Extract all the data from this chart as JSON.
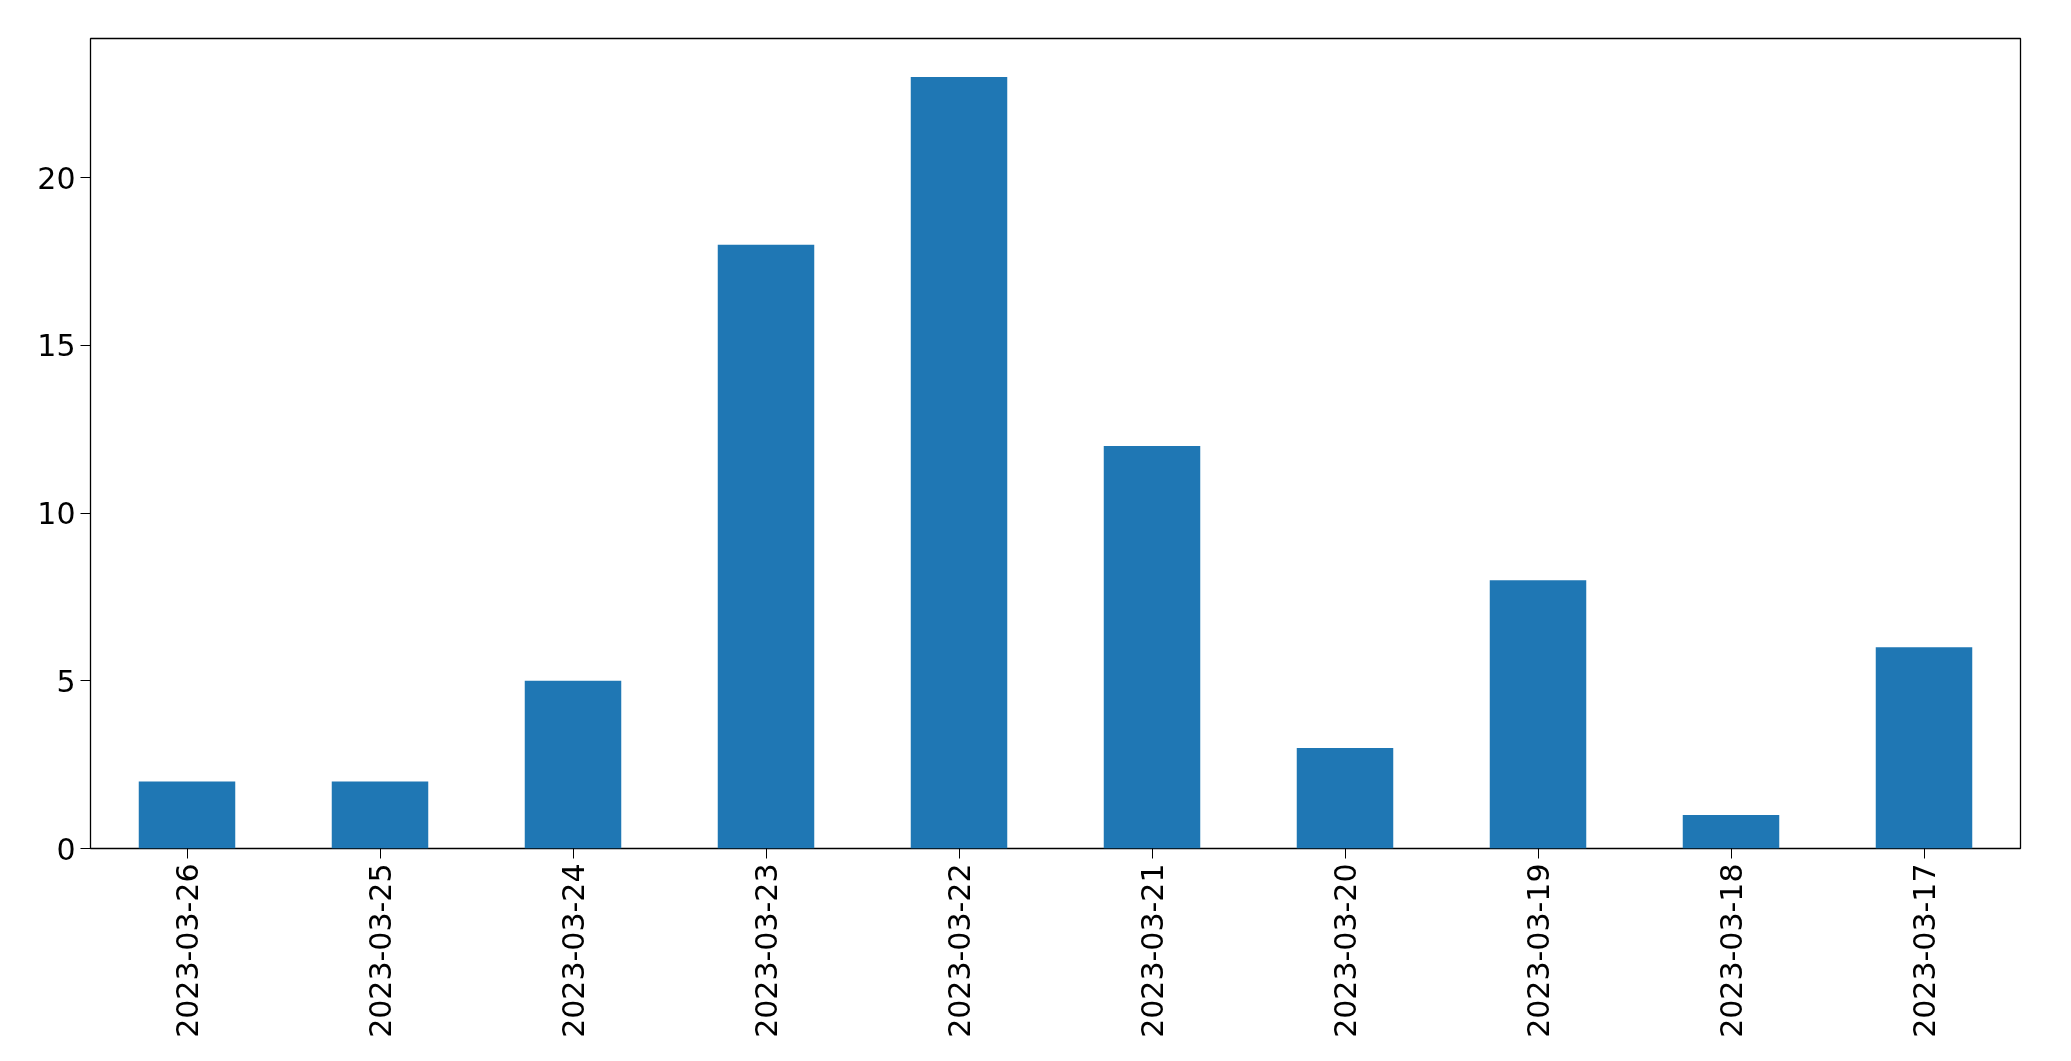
{
  "chart_data": {
    "type": "bar",
    "categories": [
      "2023-03-26",
      "2023-03-25",
      "2023-03-24",
      "2023-03-23",
      "2023-03-22",
      "2023-03-21",
      "2023-03-20",
      "2023-03-19",
      "2023-03-18",
      "2023-03-17"
    ],
    "values": [
      2,
      2,
      5,
      18,
      23,
      12,
      3,
      8,
      1,
      6
    ],
    "color": "#1f77b4",
    "ylim": [
      0,
      24.15
    ],
    "yticks": [
      0,
      5,
      10,
      15,
      20
    ]
  }
}
